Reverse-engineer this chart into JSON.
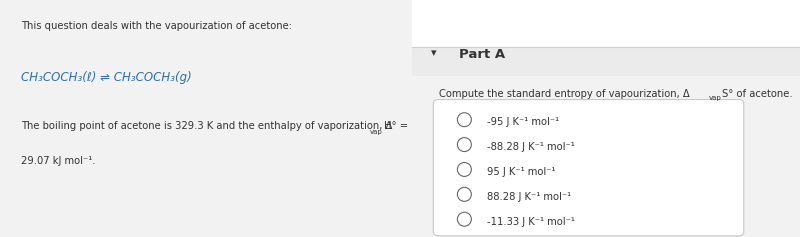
{
  "left_bg_color": "#deeef5",
  "right_bg_top_color": "#ffffff",
  "right_bg_color": "#f2f2f2",
  "white_color": "#ffffff",
  "border_color": "#c8c8c8",
  "text_color": "#333333",
  "blue_text_color": "#2c6fad",
  "part_header_bg": "#ebebeb",
  "divider_color": "#d0d0d0",
  "left_title": "This question deals with the vapourization of acetone:",
  "left_equation": "CH₃COCH₃(ℓ) ⇌ CH₃COCH₃(g)",
  "part_label": "Part A",
  "question_pre": "Compute the standard entropy of vapourization, Δ",
  "question_sub": "vap",
  "question_post": "S° of acetone.",
  "options": [
    "-95 J K⁻¹ mol⁻¹",
    "-88.28 J K⁻¹ mol⁻¹",
    "95 J K⁻¹ mol⁻¹",
    "88.28 J K⁻¹ mol⁻¹",
    "-11.33 J K⁻¹ mol⁻¹"
  ],
  "fig_w": 8.0,
  "fig_h": 2.37,
  "dpi": 100
}
